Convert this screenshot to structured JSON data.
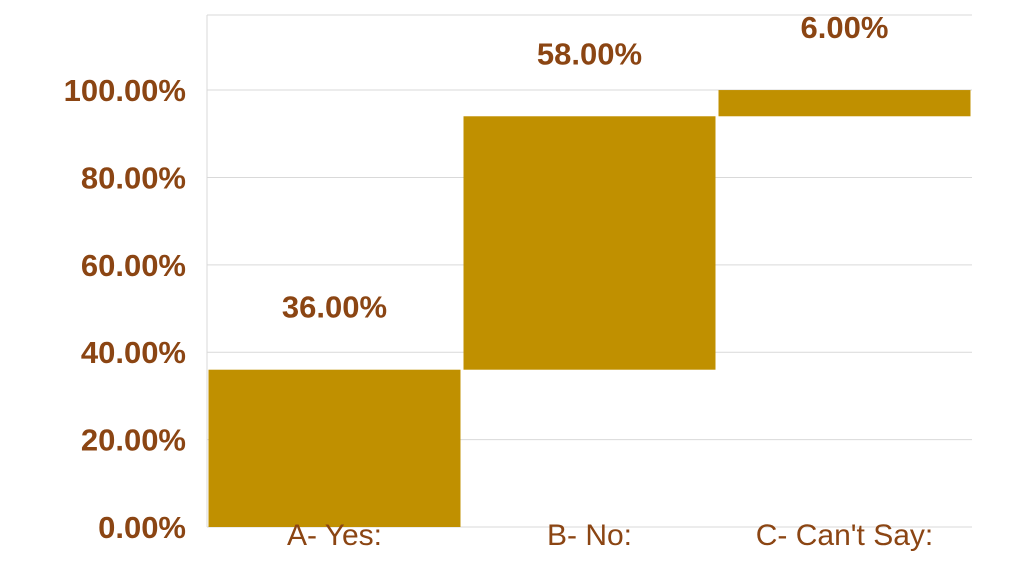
{
  "chart_data": {
    "type": "bar",
    "subtype": "waterfall",
    "categories": [
      "A- Yes:",
      "B- No:",
      "C- Can't Say:"
    ],
    "values": [
      36,
      58,
      6
    ],
    "bases": [
      0,
      36,
      94
    ],
    "data_labels": [
      "36.00%",
      "58.00%",
      "6.00%"
    ],
    "y_tick_labels": [
      "100.00%",
      "80.00%",
      "60.00%",
      "40.00%",
      "20.00%",
      "0.00%"
    ],
    "y_ticks": [
      100,
      80,
      60,
      40,
      20,
      0
    ],
    "ylim": [
      0,
      100
    ],
    "grid": true,
    "legend": "none",
    "colors": {
      "bar": "#C09000",
      "axis_labels": "#8B4513",
      "category_labels": "#8B4513",
      "gridlines": "#D9D9D9"
    }
  }
}
